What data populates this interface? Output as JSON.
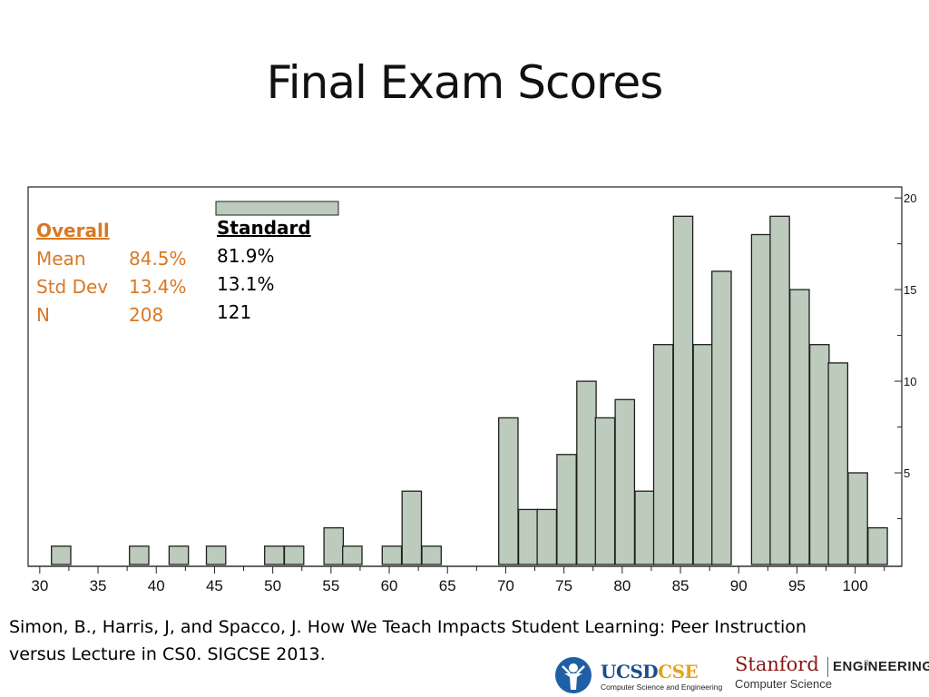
{
  "slide": {
    "title": "Final Exam Scores",
    "citation_line1": "Simon, B., Harris, J, and Spacco, J.  How We Teach Impacts Student Learning: Peer Instruction",
    "citation_line2": "versus Lecture in CS0. SIGCSE 2013.",
    "slide_number": "8"
  },
  "stats": {
    "overall": {
      "header": "Overall",
      "labels": [
        "Mean",
        "Std Dev",
        "N"
      ],
      "values": [
        "84.5%",
        "13.4%",
        "208"
      ]
    },
    "standard": {
      "header": "Standard",
      "values": [
        "81.9%",
        "13.1%",
        "121"
      ]
    }
  },
  "logos": {
    "ucsd": {
      "text_a": "UCSD",
      "text_b": "CSE",
      "subtitle": "Computer Science and Engineering"
    },
    "stanford": {
      "word": "Stanford",
      "engineering": "ENGINEERING",
      "subtitle": "Computer Science"
    }
  },
  "colors": {
    "bar_fill": "#bccbbb",
    "bar_stroke": "#1e1e1e",
    "overall_text": "#d97823"
  },
  "chart_data": {
    "type": "bar",
    "xlim": [
      29,
      104
    ],
    "ylim": [
      0,
      20.6
    ],
    "x_ticks": [
      30,
      35,
      40,
      45,
      50,
      55,
      60,
      65,
      70,
      75,
      80,
      85,
      90,
      95,
      100
    ],
    "y_ticks": [
      5,
      10,
      15,
      20
    ],
    "bin_width": 1.66,
    "bins": [
      {
        "x": 31.0,
        "count": 1
      },
      {
        "x": 37.7,
        "count": 1
      },
      {
        "x": 41.1,
        "count": 1
      },
      {
        "x": 44.3,
        "count": 1
      },
      {
        "x": 49.3,
        "count": 1
      },
      {
        "x": 51.0,
        "count": 1
      },
      {
        "x": 54.4,
        "count": 2
      },
      {
        "x": 56.0,
        "count": 1
      },
      {
        "x": 59.4,
        "count": 1
      },
      {
        "x": 61.1,
        "count": 4
      },
      {
        "x": 62.8,
        "count": 1
      },
      {
        "x": 69.4,
        "count": 8
      },
      {
        "x": 71.1,
        "count": 3
      },
      {
        "x": 72.7,
        "count": 3
      },
      {
        "x": 74.4,
        "count": 6
      },
      {
        "x": 76.1,
        "count": 10
      },
      {
        "x": 77.7,
        "count": 8
      },
      {
        "x": 79.4,
        "count": 9
      },
      {
        "x": 81.1,
        "count": 4
      },
      {
        "x": 82.7,
        "count": 12
      },
      {
        "x": 84.4,
        "count": 19
      },
      {
        "x": 86.1,
        "count": 12
      },
      {
        "x": 87.7,
        "count": 16
      },
      {
        "x": 91.1,
        "count": 18
      },
      {
        "x": 92.7,
        "count": 19
      },
      {
        "x": 94.4,
        "count": 15
      },
      {
        "x": 96.1,
        "count": 12
      },
      {
        "x": 97.7,
        "count": 11
      },
      {
        "x": 99.4,
        "count": 5
      },
      {
        "x": 101.1,
        "count": 2
      }
    ]
  }
}
